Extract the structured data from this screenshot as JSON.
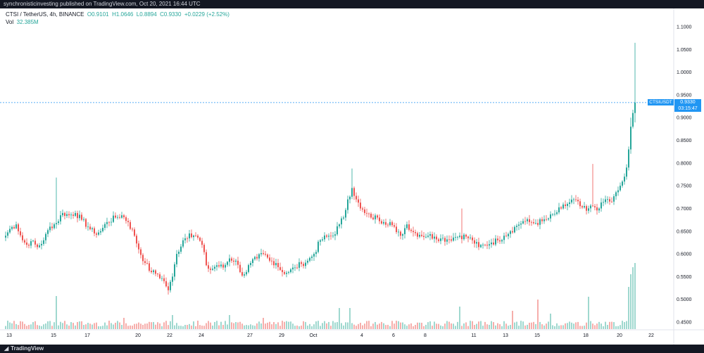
{
  "header": {
    "publish_line": "synchronisticinvesting published on TradingView.com, Oct 20, 2021 16:44 UTC"
  },
  "legend": {
    "symbol": "CTSI / TetherUS, 4h, BINANCE",
    "open": "O0.9101",
    "high": "H1.0646",
    "low": "L0.8894",
    "close": "C0.9330",
    "change": "+0.0229 (+2.52%)",
    "vol_label": "Vol",
    "vol_value": "32.385M"
  },
  "last_price": {
    "symbol_badge": "CTSIUSDT",
    "price": "0.9330",
    "countdown": "03:15:47"
  },
  "footer": {
    "brand": "TradingView",
    "brand_mark": "◢"
  },
  "colors": {
    "up": "#26a69a",
    "down": "#ef5350",
    "vol_up": "#9fd8cf",
    "vol_down": "#f6aeab",
    "last_line": "#2196f3"
  },
  "chart_data": {
    "type": "candlestick",
    "symbol": "CTSI / TetherUS",
    "interval": "4h",
    "exchange": "BINANCE",
    "y_axis": {
      "ticks": [
        "1.1000",
        "1.0500",
        "1.0000",
        "0.9500",
        "0.9000",
        "0.8500",
        "0.8000",
        "0.7500",
        "0.7000",
        "0.6500",
        "0.6000",
        "0.5500",
        "0.5000",
        "0.4500"
      ],
      "range": [
        0.44,
        1.125
      ]
    },
    "x_axis": {
      "ticks": [
        {
          "label": "13",
          "i": 2
        },
        {
          "label": "15",
          "i": 23
        },
        {
          "label": "17",
          "i": 39
        },
        {
          "label": "20",
          "i": 63
        },
        {
          "label": "22",
          "i": 78
        },
        {
          "label": "24",
          "i": 93
        },
        {
          "label": "27",
          "i": 116
        },
        {
          "label": "29",
          "i": 131
        },
        {
          "label": "Oct",
          "i": 146
        },
        {
          "label": "4",
          "i": 169
        },
        {
          "label": "6",
          "i": 184
        },
        {
          "label": "8",
          "i": 199
        },
        {
          "label": "11",
          "i": 222
        },
        {
          "label": "13",
          "i": 237
        },
        {
          "label": "15",
          "i": 252
        },
        {
          "label": "18",
          "i": 275
        },
        {
          "label": "20",
          "i": 291
        },
        {
          "label": "22",
          "i": 306
        }
      ]
    },
    "anchors": [
      [
        0,
        0.64
      ],
      [
        2,
        0.655
      ],
      [
        5,
        0.665
      ],
      [
        8,
        0.63
      ],
      [
        10,
        0.62
      ],
      [
        12,
        0.628
      ],
      [
        15,
        0.615
      ],
      [
        18,
        0.63
      ],
      [
        21,
        0.66
      ],
      [
        24,
        0.668
      ],
      [
        27,
        0.69
      ],
      [
        30,
        0.685
      ],
      [
        33,
        0.69
      ],
      [
        36,
        0.675
      ],
      [
        39,
        0.66
      ],
      [
        42,
        0.645
      ],
      [
        45,
        0.65
      ],
      [
        48,
        0.67
      ],
      [
        52,
        0.68
      ],
      [
        55,
        0.685
      ],
      [
        58,
        0.67
      ],
      [
        61,
        0.64
      ],
      [
        63,
        0.61
      ],
      [
        66,
        0.58
      ],
      [
        69,
        0.56
      ],
      [
        72,
        0.555
      ],
      [
        75,
        0.54
      ],
      [
        77,
        0.52
      ],
      [
        79,
        0.55
      ],
      [
        81,
        0.6
      ],
      [
        84,
        0.63
      ],
      [
        87,
        0.645
      ],
      [
        90,
        0.64
      ],
      [
        93,
        0.62
      ],
      [
        95,
        0.575
      ],
      [
        97,
        0.565
      ],
      [
        100,
        0.575
      ],
      [
        103,
        0.57
      ],
      [
        106,
        0.59
      ],
      [
        109,
        0.585
      ],
      [
        111,
        0.56
      ],
      [
        113,
        0.555
      ],
      [
        116,
        0.58
      ],
      [
        119,
        0.59
      ],
      [
        122,
        0.6
      ],
      [
        125,
        0.585
      ],
      [
        128,
        0.58
      ],
      [
        131,
        0.56
      ],
      [
        134,
        0.56
      ],
      [
        137,
        0.57
      ],
      [
        140,
        0.578
      ],
      [
        143,
        0.585
      ],
      [
        146,
        0.6
      ],
      [
        149,
        0.63
      ],
      [
        152,
        0.638
      ],
      [
        155,
        0.64
      ],
      [
        158,
        0.665
      ],
      [
        160,
        0.68
      ],
      [
        162,
        0.72
      ],
      [
        164,
        0.745
      ],
      [
        166,
        0.72
      ],
      [
        168,
        0.7
      ],
      [
        170,
        0.69
      ],
      [
        173,
        0.68
      ],
      [
        176,
        0.68
      ],
      [
        179,
        0.67
      ],
      [
        182,
        0.67
      ],
      [
        185,
        0.648
      ],
      [
        187,
        0.64
      ],
      [
        190,
        0.665
      ],
      [
        193,
        0.648
      ],
      [
        196,
        0.642
      ],
      [
        200,
        0.64
      ],
      [
        203,
        0.638
      ],
      [
        206,
        0.634
      ],
      [
        209,
        0.632
      ],
      [
        212,
        0.636
      ],
      [
        215,
        0.64
      ],
      [
        218,
        0.638
      ],
      [
        221,
        0.63
      ],
      [
        224,
        0.615
      ],
      [
        227,
        0.62
      ],
      [
        230,
        0.625
      ],
      [
        233,
        0.63
      ],
      [
        236,
        0.64
      ],
      [
        239,
        0.65
      ],
      [
        242,
        0.662
      ],
      [
        245,
        0.672
      ],
      [
        248,
        0.67
      ],
      [
        251,
        0.668
      ],
      [
        254,
        0.672
      ],
      [
        257,
        0.678
      ],
      [
        260,
        0.688
      ],
      [
        263,
        0.7
      ],
      [
        266,
        0.71
      ],
      [
        269,
        0.72
      ],
      [
        272,
        0.705
      ],
      [
        275,
        0.695
      ],
      [
        278,
        0.705
      ],
      [
        281,
        0.7
      ],
      [
        284,
        0.72
      ],
      [
        287,
        0.715
      ],
      [
        290,
        0.74
      ],
      [
        293,
        0.77
      ],
      [
        294,
        0.79
      ],
      [
        295,
        0.83
      ],
      [
        296,
        0.88
      ],
      [
        297,
        0.9101
      ],
      [
        298,
        0.933
      ]
    ],
    "last_candle": {
      "open": 0.9101,
      "high": 1.0646,
      "low": 0.8894,
      "close": 0.933
    },
    "last_volume_millions": 32.385
  }
}
